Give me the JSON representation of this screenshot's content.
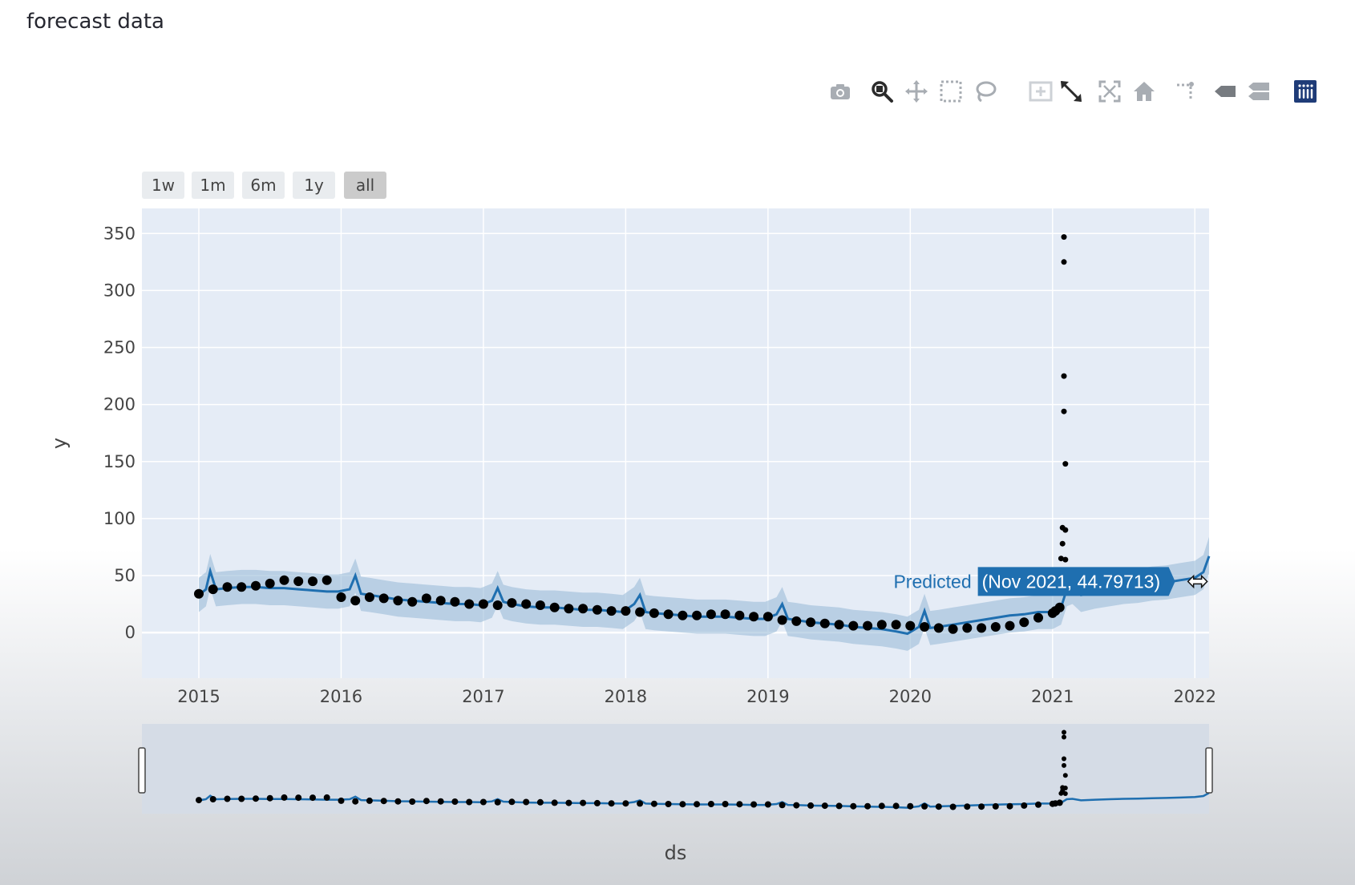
{
  "page": {
    "heading": "forecast data"
  },
  "modebar": {
    "buttons": [
      {
        "icon": "camera-icon",
        "name": "download-plot-button"
      },
      {
        "icon": "zoom-icon",
        "name": "zoom-button",
        "active": true
      },
      {
        "icon": "pan-icon",
        "name": "pan-button"
      },
      {
        "icon": "box-select-icon",
        "name": "box-select-button"
      },
      {
        "icon": "lasso-icon",
        "name": "lasso-select-button"
      },
      {
        "icon": "zoom-in-icon",
        "name": "zoom-in-button"
      },
      {
        "icon": "zoom-out-icon",
        "name": "zoom-out-button"
      },
      {
        "icon": "autoscale-icon",
        "name": "autoscale-button"
      },
      {
        "icon": "home-icon",
        "name": "reset-axes-button"
      },
      {
        "icon": "spike-lines-icon",
        "name": "spike-lines-button"
      },
      {
        "icon": "hover-closest-icon",
        "name": "hover-closest-button"
      },
      {
        "icon": "hover-compare-icon",
        "name": "hover-compare-button"
      },
      {
        "icon": "plotly-logo-icon",
        "name": "plotly-logo-button"
      }
    ]
  },
  "range_selector": {
    "buttons": [
      {
        "label": "1w"
      },
      {
        "label": "1m"
      },
      {
        "label": "6m"
      },
      {
        "label": "1y"
      },
      {
        "label": "all",
        "active": true
      }
    ]
  },
  "chart_data": {
    "type": "line",
    "title": "",
    "xlabel": "ds",
    "ylabel": "y",
    "x_ticks": [
      "2015",
      "2016",
      "2017",
      "2018",
      "2019",
      "2020",
      "2021",
      "2022"
    ],
    "y_ticks": [
      0,
      50,
      100,
      150,
      200,
      250,
      300,
      350
    ],
    "xlim": [
      2014.6,
      2022.1
    ],
    "ylim": [
      -40,
      372
    ],
    "grid": true,
    "rangeslider": true,
    "colors": {
      "plot_bg": "#e5ecf6",
      "predicted": "#1f6fb0",
      "band": "#9bbcd9",
      "actual": "#000000",
      "slider_bg": "#d5dce6"
    },
    "series": [
      {
        "kind": "actual",
        "mode": "markers",
        "x": [
          2015.0,
          2015.1,
          2015.2,
          2015.3,
          2015.4,
          2015.5,
          2015.6,
          2015.7,
          2015.8,
          2015.9,
          2016.0,
          2016.1,
          2016.2,
          2016.3,
          2016.4,
          2016.5,
          2016.6,
          2016.7,
          2016.8,
          2016.9,
          2017.0,
          2017.1,
          2017.2,
          2017.3,
          2017.4,
          2017.5,
          2017.6,
          2017.7,
          2017.8,
          2017.9,
          2018.0,
          2018.1,
          2018.2,
          2018.3,
          2018.4,
          2018.5,
          2018.6,
          2018.7,
          2018.8,
          2018.9,
          2019.0,
          2019.1,
          2019.2,
          2019.3,
          2019.4,
          2019.5,
          2019.6,
          2019.7,
          2019.8,
          2019.9,
          2020.0,
          2020.1,
          2020.2,
          2020.3,
          2020.4,
          2020.5,
          2020.6,
          2020.7,
          2020.8,
          2020.9,
          2021.0,
          2021.02,
          2021.05,
          2021.06,
          2021.07,
          2021.07,
          2021.08,
          2021.08,
          2021.08,
          2021.08,
          2021.09,
          2021.09,
          2021.09
        ],
        "y": [
          34,
          38,
          40,
          40,
          41,
          43,
          46,
          45,
          45,
          46,
          31,
          28,
          31,
          30,
          28,
          27,
          30,
          28,
          27,
          25,
          25,
          24,
          26,
          25,
          24,
          22,
          21,
          21,
          20,
          19,
          19,
          18,
          17,
          16,
          15,
          15,
          16,
          16,
          15,
          14,
          14,
          11,
          10,
          9,
          8,
          7,
          6,
          6,
          7,
          7,
          6,
          5,
          4,
          3,
          4,
          4,
          5,
          6,
          9,
          13,
          17,
          19,
          22,
          65,
          78,
          92,
          347,
          325,
          225,
          194,
          148,
          90,
          64
        ]
      },
      {
        "kind": "predicted",
        "name": "Predicted",
        "mode": "lines",
        "x": [
          2015.0,
          2015.05,
          2015.08,
          2015.12,
          2015.2,
          2015.3,
          2015.4,
          2015.5,
          2015.6,
          2015.7,
          2015.8,
          2015.9,
          2015.98,
          2016.06,
          2016.1,
          2016.14,
          2016.2,
          2016.3,
          2016.4,
          2016.5,
          2016.6,
          2016.7,
          2016.8,
          2016.9,
          2016.98,
          2017.06,
          2017.1,
          2017.14,
          2017.2,
          2017.3,
          2017.4,
          2017.5,
          2017.6,
          2017.7,
          2017.8,
          2017.9,
          2017.98,
          2018.06,
          2018.1,
          2018.14,
          2018.2,
          2018.3,
          2018.4,
          2018.5,
          2018.6,
          2018.7,
          2018.8,
          2018.9,
          2018.98,
          2019.06,
          2019.1,
          2019.14,
          2019.2,
          2019.3,
          2019.4,
          2019.5,
          2019.6,
          2019.7,
          2019.8,
          2019.9,
          2019.98,
          2020.06,
          2020.1,
          2020.14,
          2020.2,
          2020.3,
          2020.4,
          2020.5,
          2020.6,
          2020.7,
          2020.8,
          2020.9,
          2021.0,
          2021.06,
          2021.1,
          2021.14,
          2021.2,
          2021.3,
          2021.4,
          2021.5,
          2021.6,
          2021.7,
          2021.8,
          2021.9,
          2022.0,
          2022.06,
          2022.1
        ],
        "y": [
          33,
          38,
          54,
          38,
          39,
          40,
          40,
          39,
          39,
          38,
          37,
          36,
          36,
          38,
          50,
          34,
          33,
          31,
          29,
          28,
          27,
          26,
          25,
          25,
          24,
          28,
          39,
          27,
          25,
          23,
          22,
          22,
          21,
          20,
          20,
          19,
          18,
          25,
          33,
          18,
          17,
          16,
          15,
          14,
          14,
          14,
          13,
          12,
          12,
          16,
          25,
          12,
          11,
          9,
          8,
          7,
          5,
          4,
          3,
          1,
          -1,
          5,
          19,
          4,
          5,
          7,
          9,
          11,
          13,
          15,
          16,
          18,
          18,
          22,
          38,
          40,
          33,
          36,
          38,
          40,
          41,
          43,
          44,
          46,
          48,
          53,
          67
        ]
      },
      {
        "kind": "band",
        "x": [
          2015.0,
          2015.05,
          2015.08,
          2015.12,
          2015.2,
          2015.3,
          2015.4,
          2015.5,
          2015.6,
          2015.7,
          2015.8,
          2015.9,
          2015.98,
          2016.06,
          2016.1,
          2016.14,
          2016.2,
          2016.3,
          2016.4,
          2016.5,
          2016.6,
          2016.7,
          2016.8,
          2016.9,
          2016.98,
          2017.06,
          2017.1,
          2017.14,
          2017.2,
          2017.3,
          2017.4,
          2017.5,
          2017.6,
          2017.7,
          2017.8,
          2017.9,
          2017.98,
          2018.06,
          2018.1,
          2018.14,
          2018.2,
          2018.3,
          2018.4,
          2018.5,
          2018.6,
          2018.7,
          2018.8,
          2018.9,
          2018.98,
          2019.06,
          2019.1,
          2019.14,
          2019.2,
          2019.3,
          2019.4,
          2019.5,
          2019.6,
          2019.7,
          2019.8,
          2019.9,
          2019.98,
          2020.06,
          2020.1,
          2020.14,
          2020.2,
          2020.3,
          2020.4,
          2020.5,
          2020.6,
          2020.7,
          2020.8,
          2020.9,
          2021.0,
          2021.06,
          2021.1,
          2021.14,
          2021.2,
          2021.3,
          2021.4,
          2021.5,
          2021.6,
          2021.7,
          2021.8,
          2021.9,
          2022.0,
          2022.06,
          2022.1
        ],
        "upper": [
          48,
          53,
          69,
          53,
          54,
          55,
          55,
          54,
          54,
          53,
          52,
          51,
          51,
          53,
          65,
          49,
          48,
          46,
          44,
          43,
          42,
          41,
          40,
          40,
          39,
          43,
          54,
          42,
          40,
          38,
          37,
          37,
          36,
          35,
          35,
          34,
          33,
          40,
          48,
          33,
          32,
          31,
          30,
          29,
          29,
          29,
          28,
          27,
          27,
          31,
          40,
          27,
          26,
          24,
          23,
          22,
          20,
          19,
          18,
          16,
          14,
          20,
          34,
          19,
          20,
          22,
          24,
          26,
          28,
          30,
          31,
          33,
          33,
          37,
          53,
          55,
          48,
          51,
          53,
          55,
          56,
          58,
          59,
          61,
          63,
          68,
          84
        ],
        "lower": [
          18,
          23,
          39,
          23,
          24,
          25,
          25,
          24,
          24,
          23,
          22,
          21,
          21,
          23,
          35,
          19,
          18,
          16,
          14,
          13,
          12,
          11,
          10,
          10,
          9,
          13,
          24,
          12,
          10,
          8,
          7,
          7,
          6,
          5,
          5,
          4,
          3,
          10,
          18,
          3,
          2,
          1,
          0,
          -1,
          -1,
          -1,
          -2,
          -3,
          -3,
          1,
          10,
          -3,
          -4,
          -6,
          -7,
          -8,
          -10,
          -11,
          -12,
          -14,
          -16,
          -10,
          4,
          -11,
          -10,
          -8,
          -6,
          -4,
          -2,
          0,
          1,
          3,
          3,
          7,
          23,
          25,
          18,
          21,
          23,
          25,
          26,
          28,
          29,
          31,
          33,
          38,
          52
        ]
      }
    ],
    "hover": {
      "label": "Predicted",
      "text": "(Nov 2021, 44.79713)",
      "x": 2021.85,
      "y": 44.8
    }
  }
}
